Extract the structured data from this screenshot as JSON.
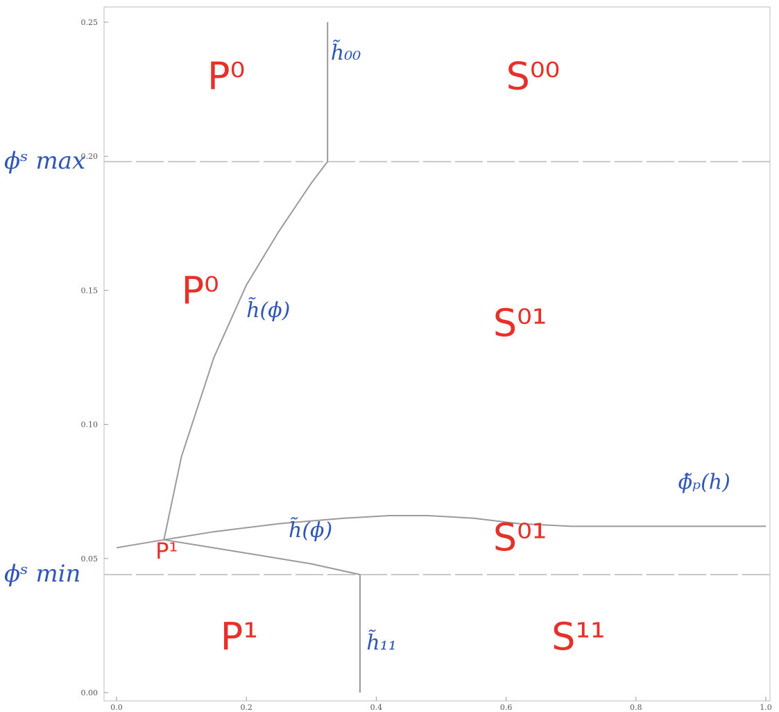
{
  "chart_data": {
    "type": "line",
    "xlim": [
      0.0,
      1.0
    ],
    "ylim": [
      0.0,
      0.25
    ],
    "x_ticks": [
      "0.0",
      "0.2",
      "0.4",
      "0.6",
      "0.8",
      "1.0"
    ],
    "y_ticks": [
      "0.00",
      "0.05",
      "0.10",
      "0.15",
      "0.20",
      "0.25"
    ],
    "grid": false,
    "colors": {
      "curves": "#9a9a9a",
      "reference_lines": "#c8c8c8",
      "region_labels": "#e8302a",
      "curve_labels": "#2f55b7"
    },
    "series": [
      {
        "x": [
          0.325,
          0.325
        ],
        "y": [
          0.198,
          0.25
        ]
      },
      {
        "x": [
          0.073,
          0.1,
          0.15,
          0.2,
          0.25,
          0.3,
          0.325
        ],
        "y": [
          0.057,
          0.088,
          0.125,
          0.152,
          0.172,
          0.19,
          0.198
        ]
      },
      {
        "x": [
          0.0,
          0.073,
          0.15,
          0.25,
          0.35,
          0.42,
          0.48,
          0.55,
          0.62,
          0.7,
          0.8,
          0.9,
          1.0
        ],
        "y": [
          0.054,
          0.057,
          0.06,
          0.063,
          0.065,
          0.066,
          0.066,
          0.065,
          0.063,
          0.062,
          0.062,
          0.062,
          0.062
        ]
      },
      {
        "x": [
          0.073,
          0.2,
          0.3,
          0.375
        ],
        "y": [
          0.057,
          0.052,
          0.048,
          0.044
        ]
      },
      {
        "x": [
          0.375,
          0.375
        ],
        "y": [
          0.0,
          0.044
        ]
      }
    ],
    "reference_lines": [
      {
        "y": 0.198,
        "label": "ϕˢ max"
      },
      {
        "y": 0.044,
        "label": "ϕˢ min"
      }
    ],
    "annotations": {
      "regions": [
        {
          "text": "P⁰",
          "x": 0.14,
          "y": 0.225
        },
        {
          "text": "S⁰⁰",
          "x": 0.6,
          "y": 0.225
        },
        {
          "text": "P⁰",
          "x": 0.1,
          "y": 0.145
        },
        {
          "text": "S⁰¹",
          "x": 0.58,
          "y": 0.133
        },
        {
          "text": "P¹",
          "x": 0.06,
          "y": 0.05
        },
        {
          "text": "S⁰¹",
          "x": 0.58,
          "y": 0.053
        },
        {
          "text": "P¹",
          "x": 0.16,
          "y": 0.016
        },
        {
          "text": "S¹¹",
          "x": 0.67,
          "y": 0.016
        }
      ],
      "curves": [
        {
          "text": "h̃₀₀",
          "x": 0.33,
          "y": 0.236
        },
        {
          "text": "h̃(ϕ)",
          "x": 0.2,
          "y": 0.14
        },
        {
          "text": "ϕ̃ₚ(h)",
          "x": 0.865,
          "y": 0.076
        },
        {
          "text": "h̃(ϕ)",
          "x": 0.265,
          "y": 0.058
        },
        {
          "text": "h̃₁₁",
          "x": 0.385,
          "y": 0.016
        }
      ]
    }
  }
}
